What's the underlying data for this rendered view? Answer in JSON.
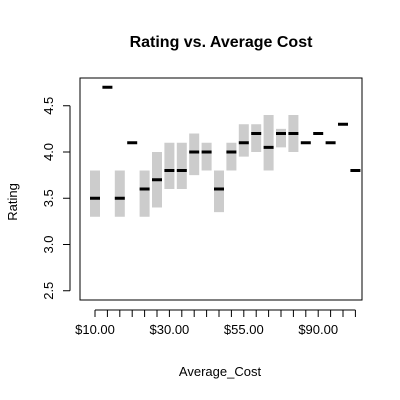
{
  "chart_data": {
    "type": "box",
    "title": "Rating vs. Average Cost",
    "xlabel": "Average_Cost",
    "ylabel": "Rating",
    "ylim": [
      2.4,
      4.8
    ],
    "y_ticks": [
      2.5,
      3.0,
      3.5,
      4.0,
      4.5
    ],
    "y_tick_labels": [
      "2.5",
      "3.0",
      "3.5",
      "4.0",
      "4.5"
    ],
    "x_tick_labels": [
      {
        "index": 0,
        "label": "$10.00"
      },
      {
        "index": 6,
        "label": "$30.00"
      },
      {
        "index": 12,
        "label": "$55.00"
      },
      {
        "index": 18,
        "label": "$90.00"
      }
    ],
    "box_color": "#cccccc",
    "median_color": "#000000",
    "boxes": [
      {
        "low": 3.3,
        "high": 3.8,
        "median": 3.5
      },
      {
        "low": 4.7,
        "high": 4.7,
        "median": 4.7
      },
      {
        "low": 3.3,
        "high": 3.8,
        "median": 3.5
      },
      {
        "low": 4.1,
        "high": 4.1,
        "median": 4.1
      },
      {
        "low": 3.3,
        "high": 3.8,
        "median": 3.6
      },
      {
        "low": 3.4,
        "high": 4.0,
        "median": 3.7
      },
      {
        "low": 3.6,
        "high": 4.1,
        "median": 3.8
      },
      {
        "low": 3.6,
        "high": 4.1,
        "median": 3.8
      },
      {
        "low": 3.75,
        "high": 4.2,
        "median": 4.0
      },
      {
        "low": 3.8,
        "high": 4.1,
        "median": 4.0
      },
      {
        "low": 3.35,
        "high": 3.8,
        "median": 3.6
      },
      {
        "low": 3.8,
        "high": 4.1,
        "median": 4.0
      },
      {
        "low": 3.95,
        "high": 4.3,
        "median": 4.1
      },
      {
        "low": 4.0,
        "high": 4.3,
        "median": 4.2
      },
      {
        "low": 3.8,
        "high": 4.4,
        "median": 4.05
      },
      {
        "low": 4.05,
        "high": 4.25,
        "median": 4.2
      },
      {
        "low": 4.0,
        "high": 4.4,
        "median": 4.2
      },
      {
        "low": 4.1,
        "high": 4.1,
        "median": 4.1
      },
      {
        "low": 4.2,
        "high": 4.2,
        "median": 4.2
      },
      {
        "low": 4.1,
        "high": 4.1,
        "median": 4.1
      },
      {
        "low": 4.3,
        "high": 4.3,
        "median": 4.3
      },
      {
        "low": 3.8,
        "high": 3.8,
        "median": 3.8
      }
    ]
  }
}
